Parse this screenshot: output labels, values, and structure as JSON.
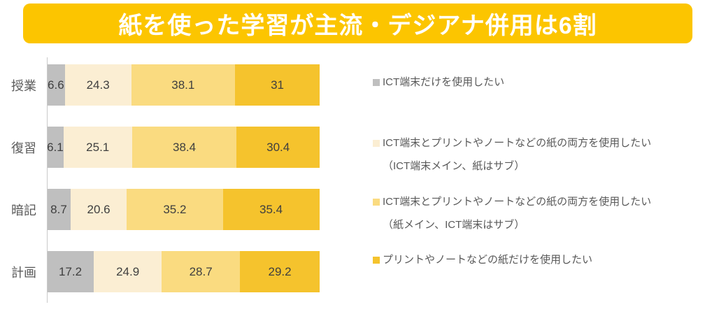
{
  "title": "紙を使った学習が主流・デジアナ併用は6割",
  "colors": {
    "banner": "#FCC500",
    "title_text": "#FFFFFF",
    "series": [
      "#BFBFBF",
      "#FBEED3",
      "#FADB80",
      "#F5C32D"
    ],
    "axis_line": "#C9C9C9",
    "category_text": "#595959",
    "value_text": "#3F3F3F",
    "legend_text": "#595959"
  },
  "chart_data": {
    "type": "bar",
    "stacked": true,
    "orientation": "horizontal",
    "title": "紙を使った学習が主流・デジアナ併用は6割",
    "categories": [
      "授業",
      "復習",
      "暗記",
      "計画"
    ],
    "series": [
      {
        "name": "ICT端末だけを使用したい",
        "color": "#BFBFBF",
        "values": [
          6.6,
          6.1,
          8.7,
          17.2
        ]
      },
      {
        "name": "ICT端末とプリントやノートなどの紙の両方を使用したい（ICT端末メイン、紙はサブ）",
        "color": "#FBEED3",
        "values": [
          24.3,
          25.1,
          20.6,
          24.9
        ]
      },
      {
        "name": "ICT端末とプリントやノートなどの紙の両方を使用したい（紙メイン、ICT端末はサブ）",
        "color": "#FADB80",
        "values": [
          38.1,
          38.4,
          35.2,
          28.7
        ]
      },
      {
        "name": "プリントやノートなどの紙だけを使用したい",
        "color": "#F5C32D",
        "values": [
          31,
          30.4,
          35.4,
          29.2
        ]
      }
    ],
    "xlim": [
      0,
      100
    ],
    "value_labels": true,
    "grid": false,
    "legend_position": "right"
  },
  "legend": {
    "items": [
      {
        "color": "#BFBFBF",
        "label_lines": [
          "ICT端末だけを使用したい"
        ]
      },
      {
        "color": "#FBEED3",
        "label_lines": [
          "ICT端末とプリントやノートなどの紙の両方を使用したい",
          "（ICT端末メイン、紙はサブ）"
        ]
      },
      {
        "color": "#FADB80",
        "label_lines": [
          "ICT端末とプリントやノートなどの紙の両方を使用したい",
          "（紙メイン、ICT端末はサブ）"
        ]
      },
      {
        "color": "#F5C32D",
        "label_lines": [
          "プリントやノートなどの紙だけを使用したい"
        ]
      }
    ]
  }
}
